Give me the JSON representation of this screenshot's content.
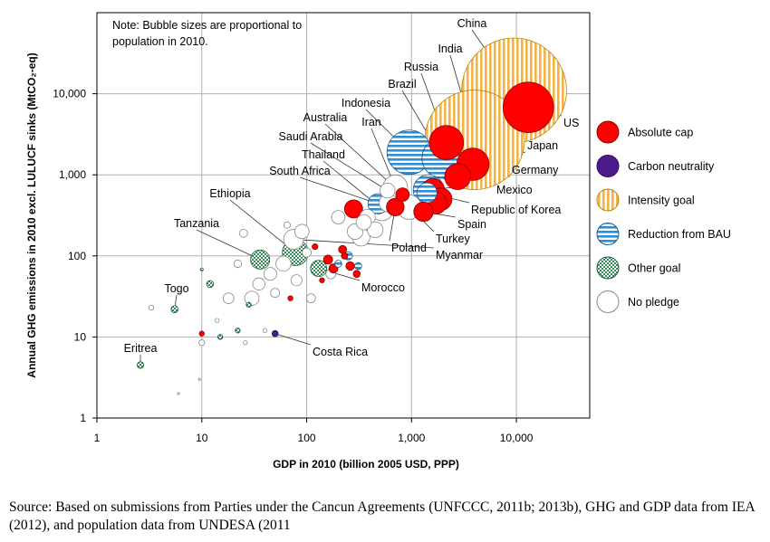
{
  "chart_data": {
    "type": "scatter",
    "title": "",
    "note": [
      "Note: Bubble sizes are proportional to",
      "population in 2010."
    ],
    "xlabel": "GDP in 2010 (billion 2005 USD, PPP)",
    "ylabel": "Annual GHG emissions in 2010 excl. LULUCF sinks (MtCO₂-eq)",
    "x_scale": "log",
    "y_scale": "log",
    "xlim": [
      1,
      50000
    ],
    "ylim": [
      1,
      100000
    ],
    "x_ticks": [
      {
        "v": 1,
        "label": "1"
      },
      {
        "v": 10,
        "label": "10"
      },
      {
        "v": 100,
        "label": "100"
      },
      {
        "v": 1000,
        "label": "1,000"
      },
      {
        "v": 10000,
        "label": "10,000"
      }
    ],
    "y_ticks": [
      {
        "v": 1,
        "label": "1"
      },
      {
        "v": 10,
        "label": "10"
      },
      {
        "v": 100,
        "label": "100"
      },
      {
        "v": 1000,
        "label": "1,000"
      },
      {
        "v": 10000,
        "label": "10,000"
      }
    ],
    "grid": true,
    "legend_position": "right",
    "categories": [
      {
        "key": "cap",
        "name": "Absolute cap",
        "color": "#ff0000",
        "stroke": "#8b0000"
      },
      {
        "key": "neutral",
        "name": "Carbon neutrality",
        "color": "#4b1a8c",
        "stroke": "#2a0a5a"
      },
      {
        "key": "intensity",
        "name": "Intensity goal",
        "color": "#f5b342",
        "stroke": "#b8860b"
      },
      {
        "key": "bau",
        "name": "Reduction from BAU",
        "color": "#2e8fd6",
        "stroke": "#1a5a8a"
      },
      {
        "key": "other",
        "name": "Other goal",
        "color": "#2e8b57",
        "stroke": "#1a5a30"
      },
      {
        "key": "none",
        "name": "No pledge",
        "color": "#ffffff",
        "stroke": "#888888"
      }
    ],
    "labeled_points": [
      {
        "name": "China",
        "x": 9500,
        "y": 11000,
        "pop": 1340,
        "cat": "intensity"
      },
      {
        "name": "India",
        "x": 4000,
        "y": 2700,
        "pop": 1210,
        "cat": "intensity"
      },
      {
        "name": "US",
        "x": 13000,
        "y": 6800,
        "pop": 310,
        "cat": "cap"
      },
      {
        "name": "Indonesia",
        "x": 950,
        "y": 1900,
        "pop": 240,
        "cat": "bau"
      },
      {
        "name": "Brazil",
        "x": 1950,
        "y": 1600,
        "pop": 195,
        "cat": "bau"
      },
      {
        "name": "Russia",
        "x": 2150,
        "y": 2500,
        "pop": 143,
        "cat": "cap"
      },
      {
        "name": "Japan",
        "x": 3850,
        "y": 1350,
        "pop": 127,
        "cat": "cap"
      },
      {
        "name": "Mexico",
        "x": 1450,
        "y": 650,
        "pop": 113,
        "cat": "bau"
      },
      {
        "name": "Germany",
        "x": 2750,
        "y": 950,
        "pop": 82,
        "cat": "cap"
      },
      {
        "name": "Iran",
        "x": 700,
        "y": 700,
        "pop": 74,
        "cat": "none"
      },
      {
        "name": "Turkey",
        "x": 950,
        "y": 400,
        "pop": 73,
        "cat": "none"
      },
      {
        "name": "Thailand",
        "x": 520,
        "y": 380,
        "pop": 68,
        "cat": "none"
      },
      {
        "name": "Ethiopia",
        "x": 78,
        "y": 110,
        "pop": 83,
        "cat": "other"
      },
      {
        "name": "Myanmar",
        "x": 75,
        "y": 160,
        "pop": 48,
        "cat": "none"
      },
      {
        "name": "South Africa",
        "x": 480,
        "y": 440,
        "pop": 50,
        "cat": "bau"
      },
      {
        "name": "Republic of Korea",
        "x": 1400,
        "y": 600,
        "pop": 49,
        "cat": "bau"
      },
      {
        "name": "Spain",
        "x": 1300,
        "y": 350,
        "pop": 46,
        "cat": "cap"
      },
      {
        "name": "Tanzania",
        "x": 36,
        "y": 90,
        "pop": 45,
        "cat": "other"
      },
      {
        "name": "Poland",
        "x": 700,
        "y": 400,
        "pop": 38,
        "cat": "cap"
      },
      {
        "name": "Morocco",
        "x": 130,
        "y": 70,
        "pop": 32,
        "cat": "other"
      },
      {
        "name": "Saudi Arabia",
        "x": 590,
        "y": 640,
        "pop": 27,
        "cat": "none"
      },
      {
        "name": "Australia",
        "x": 820,
        "y": 570,
        "pop": 22,
        "cat": "cap"
      },
      {
        "name": "Togo",
        "x": 5.5,
        "y": 22,
        "pop": 6,
        "cat": "other"
      },
      {
        "name": "Costa Rica",
        "x": 50,
        "y": 11,
        "pop": 4.6,
        "cat": "neutral"
      },
      {
        "name": "Eritrea",
        "x": 2.6,
        "y": 4.5,
        "pop": 5.3,
        "cat": "other"
      }
    ],
    "other_points": [
      {
        "x": 1600,
        "y": 650,
        "pop": 65,
        "cat": "cap"
      },
      {
        "x": 1900,
        "y": 500,
        "pop": 61,
        "cat": "cap"
      },
      {
        "x": 1700,
        "y": 450,
        "pop": 60,
        "cat": "cap"
      },
      {
        "x": 280,
        "y": 380,
        "pop": 40,
        "cat": "cap"
      },
      {
        "x": 330,
        "y": 170,
        "pop": 38,
        "cat": "none"
      },
      {
        "x": 290,
        "y": 200,
        "pop": 30,
        "cat": "none"
      },
      {
        "x": 380,
        "y": 300,
        "pop": 30,
        "cat": "none"
      },
      {
        "x": 600,
        "y": 450,
        "pop": 40,
        "cat": "none"
      },
      {
        "x": 450,
        "y": 210,
        "pop": 30,
        "cat": "none"
      },
      {
        "x": 350,
        "y": 260,
        "pop": 28,
        "cat": "none"
      },
      {
        "x": 200,
        "y": 300,
        "pop": 22,
        "cat": "none"
      },
      {
        "x": 90,
        "y": 200,
        "pop": 25,
        "cat": "none"
      },
      {
        "x": 60,
        "y": 80,
        "pop": 28,
        "cat": "none"
      },
      {
        "x": 45,
        "y": 60,
        "pop": 20,
        "cat": "none"
      },
      {
        "x": 30,
        "y": 30,
        "pop": 25,
        "cat": "none"
      },
      {
        "x": 35,
        "y": 45,
        "pop": 18,
        "cat": "none"
      },
      {
        "x": 25,
        "y": 190,
        "pop": 8,
        "cat": "none"
      },
      {
        "x": 18,
        "y": 30,
        "pop": 14,
        "cat": "none"
      },
      {
        "x": 50,
        "y": 35,
        "pop": 10,
        "cat": "none"
      },
      {
        "x": 22,
        "y": 80,
        "pop": 7,
        "cat": "none"
      },
      {
        "x": 110,
        "y": 30,
        "pop": 10,
        "cat": "none"
      },
      {
        "x": 170,
        "y": 60,
        "pop": 12,
        "cat": "none"
      },
      {
        "x": 100,
        "y": 110,
        "pop": 10,
        "cat": "none"
      },
      {
        "x": 80,
        "y": 50,
        "pop": 15,
        "cat": "none"
      },
      {
        "x": 3.3,
        "y": 23,
        "pop": 3,
        "cat": "none"
      },
      {
        "x": 10,
        "y": 8.5,
        "pop": 4,
        "cat": "none"
      },
      {
        "x": 160,
        "y": 90,
        "pop": 10,
        "cat": "cap"
      },
      {
        "x": 180,
        "y": 70,
        "pop": 10,
        "cat": "cap"
      },
      {
        "x": 220,
        "y": 120,
        "pop": 8,
        "cat": "cap"
      },
      {
        "x": 260,
        "y": 75,
        "pop": 9,
        "cat": "cap"
      },
      {
        "x": 300,
        "y": 60,
        "pop": 6,
        "cat": "cap"
      },
      {
        "x": 230,
        "y": 100,
        "pop": 5,
        "cat": "cap"
      },
      {
        "x": 120,
        "y": 130,
        "pop": 4,
        "cat": "cap"
      },
      {
        "x": 70,
        "y": 30,
        "pop": 3,
        "cat": "cap"
      },
      {
        "x": 10,
        "y": 11,
        "pop": 3,
        "cat": "cap"
      },
      {
        "x": 140,
        "y": 50,
        "pop": 3,
        "cat": "cap"
      },
      {
        "x": 250,
        "y": 100,
        "pop": 8,
        "cat": "bau"
      },
      {
        "x": 310,
        "y": 75,
        "pop": 6,
        "cat": "bau"
      },
      {
        "x": 200,
        "y": 80,
        "pop": 6,
        "cat": "bau"
      },
      {
        "x": 12,
        "y": 45,
        "pop": 6,
        "cat": "other"
      },
      {
        "x": 22,
        "y": 12,
        "pop": 3,
        "cat": "other"
      },
      {
        "x": 15,
        "y": 10,
        "pop": 3,
        "cat": "other"
      },
      {
        "x": 10,
        "y": 68,
        "pop": 1,
        "cat": "other"
      },
      {
        "x": 28,
        "y": 25,
        "pop": 3,
        "cat": "other"
      },
      {
        "x": 9.5,
        "y": 3,
        "pop": 0.5,
        "cat": "none"
      },
      {
        "x": 6,
        "y": 2,
        "pop": 0.5,
        "cat": "none"
      },
      {
        "x": 14,
        "y": 16,
        "pop": 2,
        "cat": "none"
      },
      {
        "x": 26,
        "y": 8.5,
        "pop": 2,
        "cat": "none"
      },
      {
        "x": 40,
        "y": 12,
        "pop": 2,
        "cat": "none"
      },
      {
        "x": 65,
        "y": 240,
        "pop": 5,
        "cat": "none"
      }
    ]
  },
  "source_text": "Source: Based on submissions from Parties under the Cancun Agreements (UNFCCC, 2011b; 2013b), GHG and GDP data from IEA (2012), and population data from UNDESA (2011"
}
